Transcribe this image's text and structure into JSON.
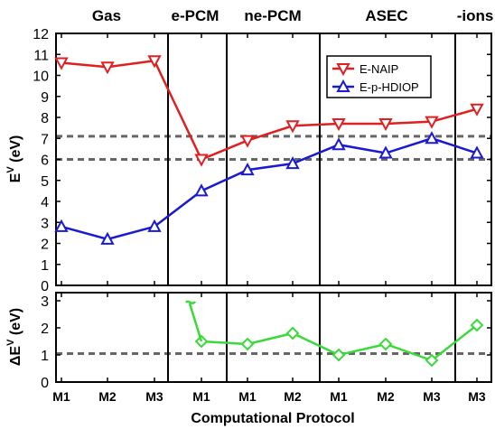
{
  "chart_data": [
    {
      "type": "line",
      "panel": "top",
      "ylabel_main": "E",
      "ylabel_sup": "V",
      "ylabel_unit": "(eV)",
      "ylim": [
        0,
        12
      ],
      "yticks": [
        0,
        1,
        2,
        3,
        4,
        5,
        6,
        7,
        8,
        9,
        10,
        11,
        12
      ],
      "categories": [
        "M1",
        "M2",
        "M3",
        "M1",
        "M1",
        "M2",
        "M1",
        "M2",
        "M3",
        "M3"
      ],
      "section_headers": [
        "Gas",
        "e-PCM",
        "ne-PCM",
        "ASEC",
        "-ions"
      ],
      "reference_lines": [
        7.1,
        6.0
      ],
      "legend_position": "top-right",
      "series": [
        {
          "name": "E-NAIP",
          "color": "#e02020",
          "marker": "triangle-down",
          "values": [
            10.6,
            10.4,
            10.7,
            6.0,
            6.9,
            7.6,
            7.7,
            7.7,
            7.8,
            8.4
          ]
        },
        {
          "name": "E-p-HDIOP",
          "color": "#1a1ad0",
          "marker": "triangle-up",
          "values": [
            2.8,
            2.2,
            2.8,
            4.5,
            5.5,
            5.8,
            6.7,
            6.3,
            7.0,
            6.3
          ]
        }
      ]
    },
    {
      "type": "line",
      "panel": "bottom",
      "ylabel_main": "ΔE",
      "ylabel_sup": "V",
      "ylabel_unit": "(eV)",
      "ylim": [
        0,
        3.3
      ],
      "yticks": [
        0,
        1,
        2,
        3
      ],
      "categories": [
        "M1",
        "M2",
        "M3",
        "M1",
        "M1",
        "M2",
        "M1",
        "M2",
        "M3",
        "M3"
      ],
      "reference_lines": [
        1.05
      ],
      "series": [
        {
          "color": "#3ada3a",
          "marker": "diamond",
          "values": [
            null,
            null,
            null,
            1.5,
            1.4,
            1.8,
            1.0,
            1.4,
            0.8,
            2.1
          ]
        }
      ]
    }
  ],
  "xlabel": "Computational Protocol",
  "colors": {
    "enaip": "#e02020",
    "ephdiop": "#1a1ad0",
    "delta": "#3ada3a",
    "reference": "#666666"
  }
}
